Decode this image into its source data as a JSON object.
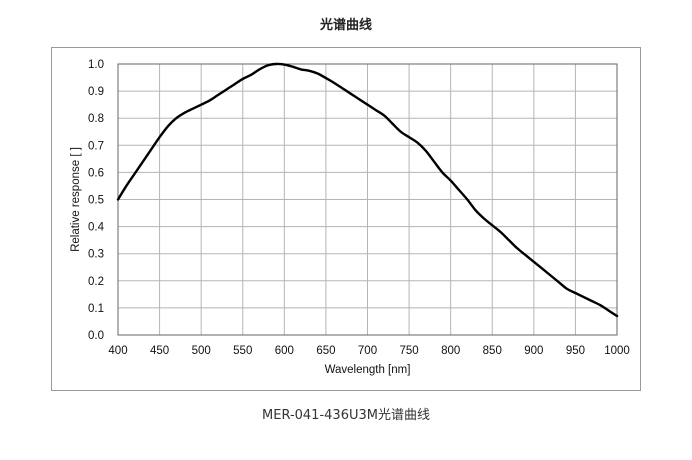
{
  "page": {
    "title": "光谱曲线",
    "caption": "MER-041-436U3M光谱曲线"
  },
  "chart_data": {
    "type": "line",
    "title": "",
    "xlabel": "Wavelength [nm]",
    "ylabel": "Relative response [ ]",
    "xlim": [
      400,
      1000
    ],
    "ylim": [
      0.0,
      1.0
    ],
    "x_ticks": [
      400,
      450,
      500,
      550,
      600,
      650,
      700,
      750,
      800,
      850,
      900,
      950,
      1000
    ],
    "y_ticks": [
      "0.0",
      "0.1",
      "0.2",
      "0.3",
      "0.4",
      "0.5",
      "0.6",
      "0.7",
      "0.8",
      "0.9",
      "1.0"
    ],
    "grid": true,
    "legend": "none",
    "series": [
      {
        "color": "#000000",
        "x": [
          400,
          410,
          420,
          430,
          440,
          450,
          460,
          470,
          480,
          490,
          500,
          510,
          520,
          530,
          540,
          550,
          560,
          570,
          580,
          590,
          600,
          610,
          620,
          630,
          640,
          650,
          660,
          670,
          680,
          690,
          700,
          710,
          720,
          730,
          740,
          750,
          760,
          770,
          780,
          790,
          800,
          810,
          820,
          830,
          840,
          850,
          860,
          870,
          880,
          890,
          900,
          910,
          920,
          930,
          940,
          950,
          960,
          970,
          980,
          990,
          1000
        ],
        "y": [
          0.5,
          0.55,
          0.595,
          0.64,
          0.685,
          0.73,
          0.77,
          0.8,
          0.82,
          0.835,
          0.85,
          0.865,
          0.885,
          0.905,
          0.925,
          0.945,
          0.96,
          0.98,
          0.995,
          1.0,
          0.998,
          0.99,
          0.98,
          0.975,
          0.965,
          0.948,
          0.93,
          0.91,
          0.89,
          0.87,
          0.85,
          0.83,
          0.81,
          0.78,
          0.75,
          0.73,
          0.71,
          0.68,
          0.64,
          0.6,
          0.57,
          0.535,
          0.5,
          0.46,
          0.43,
          0.405,
          0.38,
          0.35,
          0.32,
          0.295,
          0.27,
          0.245,
          0.22,
          0.195,
          0.17,
          0.155,
          0.14,
          0.125,
          0.11,
          0.09,
          0.07
        ]
      }
    ]
  }
}
